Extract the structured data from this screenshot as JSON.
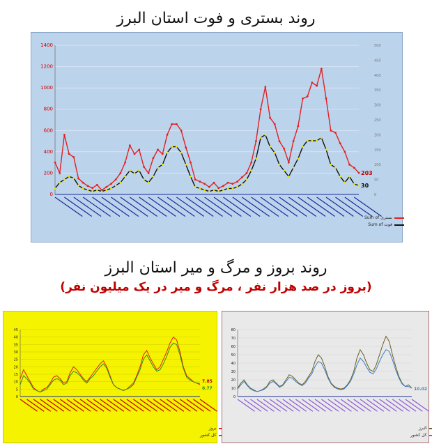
{
  "page": {
    "title1": "روند بستری و فوت استان البرز",
    "title2": "روند بروز و مرگ و میر استان البرز",
    "title3": "(بروز در صد هزار نفر ، مرگ و میر در یک میلیون نفر)"
  },
  "colors": {
    "red": "#e02020",
    "black": "#111111",
    "yellow": "#e6e600",
    "blue": "#3a7fc8",
    "olive": "#6b6020",
    "green": "#2e8b2e",
    "axis_blue": "#1a2a9a"
  },
  "chart_data": [
    {
      "type": "line",
      "title": "روند بستری و فوت استان البرز",
      "ylim_left": [
        0,
        1400
      ],
      "ylim_right": [
        0,
        500
      ],
      "yticks_left": [
        "0",
        "200",
        "400",
        "600",
        "800",
        "1000",
        "1200",
        "1400"
      ],
      "legend": [
        "بستری Sum of",
        "فوت Sum of"
      ],
      "end_labels": [
        "203",
        "30"
      ],
      "series": [
        {
          "name": "بستری Sum of",
          "color": "red",
          "axis": "left",
          "values": [
            300,
            200,
            560,
            380,
            350,
            150,
            110,
            80,
            60,
            90,
            40,
            70,
            100,
            140,
            200,
            300,
            460,
            380,
            420,
            260,
            200,
            340,
            420,
            380,
            560,
            660,
            660,
            600,
            440,
            300,
            140,
            120,
            100,
            70,
            110,
            60,
            80,
            110,
            100,
            120,
            160,
            200,
            300,
            500,
            800,
            1010,
            720,
            660,
            500,
            430,
            300,
            500,
            640,
            900,
            920,
            1050,
            1020,
            1180,
            900,
            600,
            580,
            480,
            400,
            280,
            250,
            203
          ]
        },
        {
          "name": "فوت Sum of",
          "color": "black",
          "axis": "right",
          "values": [
            20,
            40,
            50,
            60,
            55,
            30,
            20,
            15,
            10,
            15,
            10,
            15,
            20,
            30,
            40,
            60,
            80,
            70,
            80,
            50,
            40,
            60,
            90,
            100,
            140,
            160,
            160,
            140,
            100,
            60,
            25,
            20,
            15,
            10,
            15,
            10,
            15,
            20,
            20,
            25,
            35,
            50,
            80,
            120,
            190,
            200,
            160,
            140,
            100,
            80,
            60,
            90,
            120,
            160,
            180,
            180,
            180,
            190,
            150,
            100,
            90,
            60,
            40,
            60,
            35,
            30
          ]
        }
      ]
    },
    {
      "type": "line",
      "ylim": [
        0,
        45
      ],
      "yticks": [
        "0",
        "5",
        "10",
        "15",
        "20",
        "25",
        "30",
        "35",
        "40",
        "45"
      ],
      "legend": [
        "بروز",
        "کل کشور"
      ],
      "end_labels": [
        "8.77",
        "7.85"
      ],
      "series": [
        {
          "name": "بروز",
          "color": "red",
          "values": [
            12,
            18,
            14,
            10,
            6,
            4,
            3,
            5,
            6,
            9,
            13,
            14,
            12,
            9,
            10,
            16,
            20,
            18,
            15,
            12,
            10,
            13,
            16,
            19,
            22,
            24,
            20,
            14,
            8,
            6,
            5,
            4,
            5,
            7,
            9,
            14,
            20,
            28,
            31,
            26,
            22,
            18,
            20,
            25,
            30,
            36,
            40,
            38,
            30,
            20,
            14,
            12,
            10,
            9,
            8
          ]
        },
        {
          "name": "کل کشور",
          "color": "green",
          "values": [
            8,
            14,
            12,
            9,
            5,
            4,
            3,
            4,
            5,
            8,
            11,
            12,
            11,
            8,
            9,
            14,
            17,
            16,
            14,
            11,
            9,
            12,
            14,
            17,
            20,
            22,
            19,
            13,
            8,
            6,
            5,
            4,
            5,
            6,
            8,
            13,
            18,
            25,
            28,
            24,
            20,
            17,
            18,
            22,
            27,
            33,
            36,
            35,
            28,
            19,
            13,
            11,
            10,
            9,
            8.8
          ]
        }
      ]
    },
    {
      "type": "line",
      "ylim": [
        0,
        80
      ],
      "yticks": [
        "0",
        "10",
        "20",
        "30",
        "40",
        "50",
        "60",
        "70",
        "80"
      ],
      "legend": [
        "البرز",
        "کل کشور"
      ],
      "end_labels": [
        "10.02"
      ],
      "series": [
        {
          "name": "البرز",
          "color": "olive",
          "values": [
            10,
            16,
            20,
            14,
            10,
            8,
            6,
            7,
            9,
            12,
            18,
            20,
            16,
            12,
            14,
            20,
            26,
            24,
            20,
            16,
            14,
            18,
            24,
            30,
            42,
            50,
            46,
            36,
            24,
            16,
            12,
            10,
            9,
            10,
            14,
            20,
            30,
            46,
            56,
            50,
            40,
            32,
            30,
            38,
            50,
            62,
            72,
            66,
            50,
            36,
            24,
            16,
            12,
            14,
            10
          ]
        },
        {
          "name": "کل کشور",
          "color": "blue",
          "values": [
            9,
            14,
            18,
            13,
            9,
            7,
            6,
            7,
            8,
            11,
            16,
            18,
            15,
            11,
            13,
            18,
            23,
            22,
            18,
            15,
            13,
            16,
            22,
            27,
            36,
            42,
            40,
            32,
            22,
            15,
            11,
            9,
            8,
            9,
            13,
            18,
            27,
            38,
            46,
            42,
            35,
            29,
            27,
            33,
            42,
            50,
            56,
            54,
            44,
            32,
            22,
            15,
            12,
            12,
            10.02
          ]
        }
      ]
    }
  ]
}
